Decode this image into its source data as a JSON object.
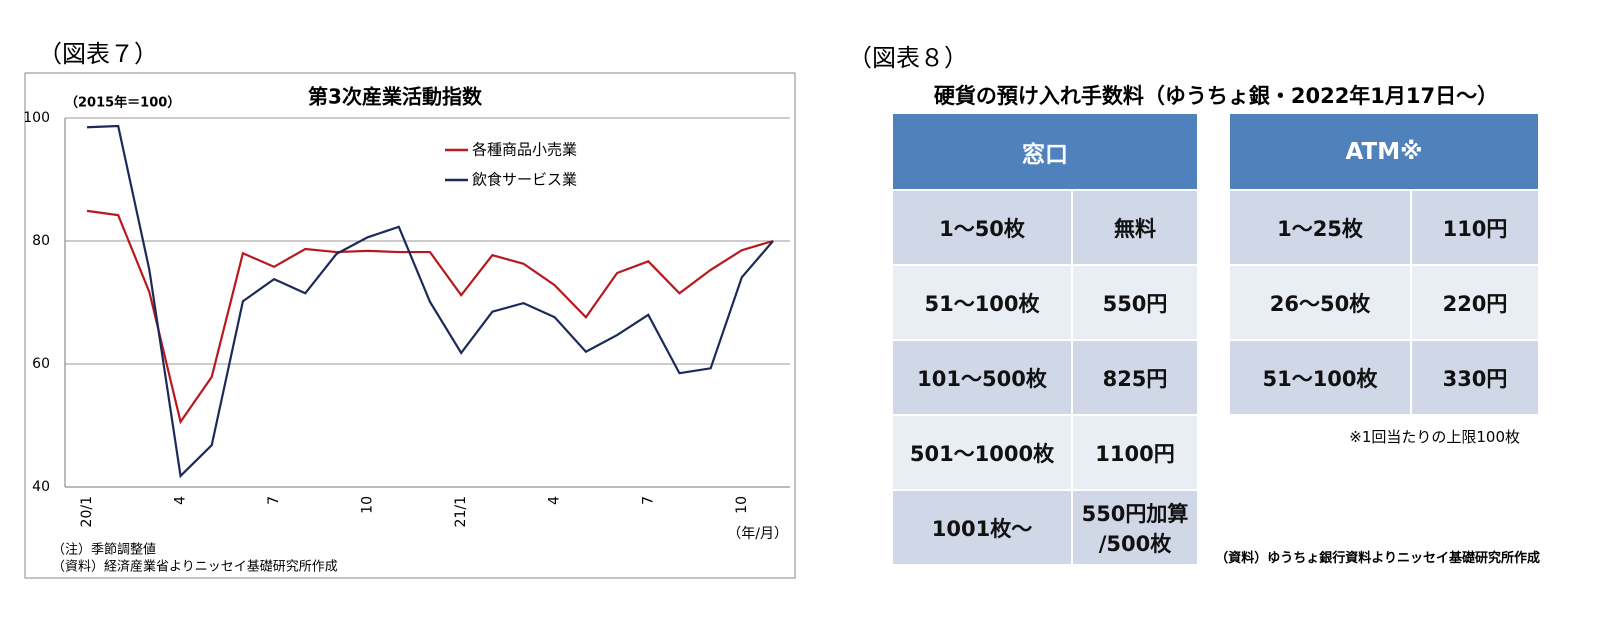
{
  "chart_data": {
    "type": "line",
    "figure_label": "（図表７）",
    "title": "第3次産業活動指数",
    "unit_label": "（2015年＝100）",
    "x_label": "（年/月）",
    "note": "（注）季節調整値",
    "source": "（資料）経済産業省よりニッセイ基礎研究所作成",
    "categories": [
      "20/1",
      null,
      null,
      "4",
      null,
      null,
      "7",
      null,
      null,
      "10",
      null,
      null,
      "21/1",
      null,
      null,
      "4",
      null,
      null,
      "7",
      null,
      null,
      "10",
      null
    ],
    "series": [
      {
        "name": "各種商品小売業",
        "color": "#b8191e",
        "values": [
          84.9,
          84.2,
          71.7,
          50.6,
          57.9,
          78.0,
          75.8,
          78.7,
          78.2,
          78.4,
          78.2,
          78.2,
          71.2,
          77.7,
          76.3,
          72.8,
          67.6,
          74.8,
          76.7,
          71.5,
          75.3,
          78.5,
          80.0
        ]
      },
      {
        "name": "飲食サービス業",
        "color": "#1c2a5a",
        "values": [
          98.5,
          98.7,
          75.3,
          41.8,
          46.8,
          70.2,
          73.8,
          71.5,
          77.9,
          80.6,
          82.3,
          70.1,
          61.8,
          68.5,
          69.9,
          67.6,
          62.0,
          64.7,
          68.0,
          58.5,
          59.3,
          74.1,
          80.0
        ]
      }
    ],
    "ylim": [
      40,
      100
    ],
    "yticks": [
      40,
      60,
      80,
      100
    ],
    "grid": true
  },
  "fees": {
    "figure_label": "（図表８）",
    "title": "硬貨の預け入れ手数料（ゆうちょ銀・2022年1月17日～）",
    "tables": [
      {
        "header": "窓口",
        "rows": [
          [
            "1～50枚",
            "無料"
          ],
          [
            "51～100枚",
            "550円"
          ],
          [
            "101～500枚",
            "825円"
          ],
          [
            "501～1000枚",
            "1100円"
          ],
          [
            "1001枚～",
            [
              "550円加算",
              "/500枚"
            ]
          ]
        ]
      },
      {
        "header": "ATM※",
        "rows": [
          [
            "1～25枚",
            "110円"
          ],
          [
            "26～50枚",
            "220円"
          ],
          [
            "51～100枚",
            "330円"
          ]
        ]
      }
    ],
    "note": "※1回当たりの上限100枚",
    "source": "（資料）ゆうちょ銀行資料よりニッセイ基礎研究所作成"
  }
}
